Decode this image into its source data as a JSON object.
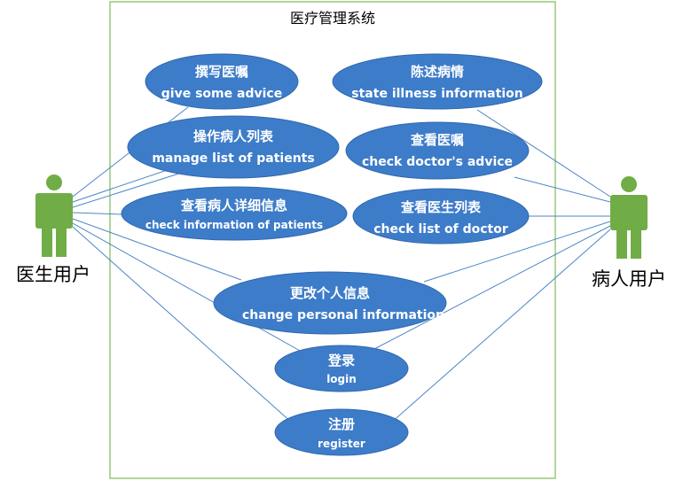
{
  "system": {
    "title": "医疗管理系统"
  },
  "actors": {
    "doctor": {
      "label": "医生用户",
      "color": "#70ad47"
    },
    "patient": {
      "label": "病人用户",
      "color": "#70ad47"
    }
  },
  "use_cases": {
    "give_advice": {
      "cn": "撰写医嘱",
      "en": "give some advice"
    },
    "manage_patients": {
      "cn": "操作病人列表",
      "en": "manage list of patients"
    },
    "check_patient_info": {
      "cn": "查看病人详细信息",
      "en": "check information of patients"
    },
    "state_illness": {
      "cn": "陈述病情",
      "en": "state illness information"
    },
    "check_advice": {
      "cn": "查看医嘱",
      "en": "check doctor's advice"
    },
    "check_doctors": {
      "cn": "查看医生列表",
      "en": "check list of doctor"
    },
    "change_info": {
      "cn": "更改个人信息",
      "en": "change personal information"
    },
    "login": {
      "cn": "登录",
      "en": "login"
    },
    "register": {
      "cn": "注册",
      "en": "register"
    }
  },
  "colors": {
    "ellipse": "#3d7cc9",
    "line": "#4f86c6",
    "boundary": "#7dbb5a",
    "actor": "#70ad47"
  }
}
